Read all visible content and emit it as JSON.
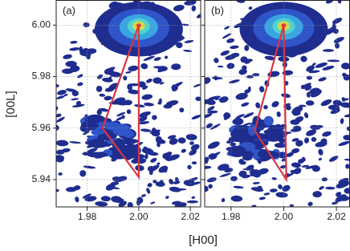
{
  "chart_data": [
    {
      "type": "map",
      "label": "(a)",
      "ylabel": "[00L]",
      "xlim": [
        1.968,
        2.024
      ],
      "ylim": [
        5.9294,
        6.0096
      ],
      "xticks": [
        1.98,
        {
          "value": 2,
          "label": "2.00"
        },
        2.02
      ],
      "yticks": [
        5.94,
        5.96,
        5.98,
        {
          "value": 6,
          "label": "6.00"
        }
      ],
      "grid": true,
      "series": [
        {
          "color": "#d9363e",
          "x": [
            2.0,
            1.986,
            2.0,
            2.0
          ],
          "y": [
            6.0,
            5.96,
            5.941,
            6.0
          ]
        }
      ]
    },
    {
      "type": "map",
      "label": "(b)",
      "xlim": [
        1.97,
        2.025
      ],
      "ylim": [
        5.9294,
        6.0096
      ],
      "xticks": [
        1.98,
        {
          "value": 2,
          "label": "2.00"
        },
        2.02
      ],
      "yticks": [
        5.94,
        5.96,
        5.98,
        {
          "value": 6,
          "label": "6.00"
        }
      ],
      "grid": true,
      "series": [
        {
          "color": "#d9363e",
          "x": [
            2.0,
            1.989,
            2.001,
            2.0
          ],
          "y": [
            6.0,
            5.959,
            5.94,
            6.0
          ]
        }
      ]
    }
  ],
  "xlabel": "[H00]"
}
